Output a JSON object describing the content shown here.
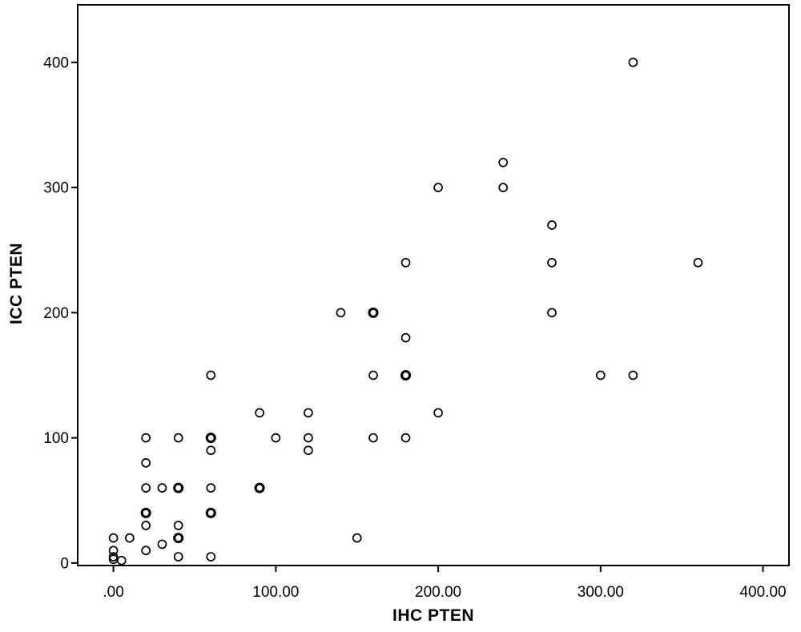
{
  "figure": {
    "background": "#ffffff",
    "frame_color": "#000000",
    "text_color": "#000000"
  },
  "chart_data": {
    "type": "scatter",
    "title": "",
    "xlabel": "IHC PTEN",
    "ylabel": "ICC PTEN",
    "marker": "open-circle",
    "marker_color": "#000000",
    "grid": false,
    "legend": null,
    "xlim": [
      -22,
      416
    ],
    "ylim": [
      -2,
      446
    ],
    "x_ticks": {
      "values": [
        0,
        100,
        200,
        300,
        400
      ],
      "labels": [
        ".00",
        "100.00",
        "200.00",
        "300.00",
        "400.00"
      ]
    },
    "y_ticks": {
      "values": [
        0,
        100,
        200,
        300,
        400
      ],
      "labels": [
        "0",
        "100",
        "200",
        "300",
        "400"
      ]
    },
    "points": [
      [
        320,
        400
      ],
      [
        240,
        320
      ],
      [
        200,
        300
      ],
      [
        240,
        300
      ],
      [
        270,
        270
      ],
      [
        180,
        240
      ],
      [
        270,
        240
      ],
      [
        360,
        240
      ],
      [
        140,
        200
      ],
      [
        160,
        200
      ],
      [
        160,
        200
      ],
      [
        270,
        200
      ],
      [
        180,
        180
      ],
      [
        60,
        150
      ],
      [
        160,
        150
      ],
      [
        180,
        150
      ],
      [
        180,
        150
      ],
      [
        300,
        150
      ],
      [
        320,
        150
      ],
      [
        90,
        120
      ],
      [
        120,
        120
      ],
      [
        200,
        120
      ],
      [
        20,
        100
      ],
      [
        40,
        100
      ],
      [
        60,
        100
      ],
      [
        60,
        100
      ],
      [
        100,
        100
      ],
      [
        120,
        100
      ],
      [
        160,
        100
      ],
      [
        180,
        100
      ],
      [
        60,
        90
      ],
      [
        120,
        90
      ],
      [
        20,
        80
      ],
      [
        20,
        60
      ],
      [
        30,
        60
      ],
      [
        40,
        60
      ],
      [
        40,
        60
      ],
      [
        60,
        60
      ],
      [
        90,
        60
      ],
      [
        90,
        60
      ],
      [
        20,
        40
      ],
      [
        20,
        40
      ],
      [
        60,
        40
      ],
      [
        60,
        40
      ],
      [
        20,
        30
      ],
      [
        40,
        30
      ],
      [
        0,
        20
      ],
      [
        10,
        20
      ],
      [
        40,
        20
      ],
      [
        40,
        20
      ],
      [
        150,
        20
      ],
      [
        30,
        15
      ],
      [
        0,
        10
      ],
      [
        20,
        10
      ],
      [
        40,
        5
      ],
      [
        60,
        5
      ],
      [
        0,
        5
      ],
      [
        0,
        3
      ],
      [
        5,
        2
      ]
    ]
  }
}
